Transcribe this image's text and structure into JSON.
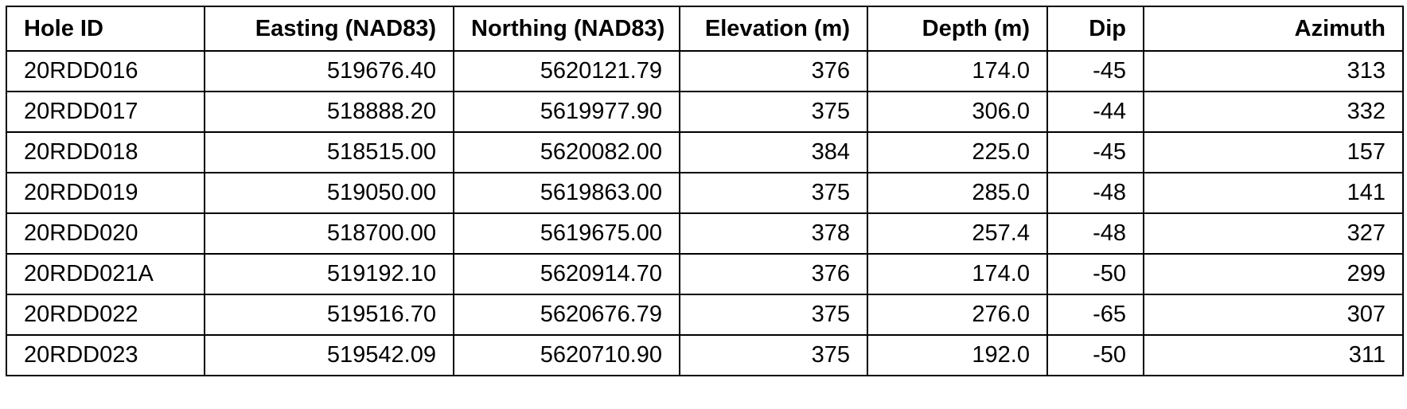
{
  "table": {
    "headers": [
      "Hole ID",
      "Easting (NAD83)",
      "Northing (NAD83)",
      "Elevation (m)",
      "Depth (m)",
      "Dip",
      "Azimuth"
    ],
    "rows": [
      [
        "20RDD016",
        "519676.40",
        "5620121.79",
        "376",
        "174.0",
        "-45",
        "313"
      ],
      [
        "20RDD017",
        "518888.20",
        "5619977.90",
        "375",
        "306.0",
        "-44",
        "332"
      ],
      [
        "20RDD018",
        "518515.00",
        "5620082.00",
        "384",
        "225.0",
        "-45",
        "157"
      ],
      [
        "20RDD019",
        "519050.00",
        "5619863.00",
        "375",
        "285.0",
        "-48",
        "141"
      ],
      [
        "20RDD020",
        "518700.00",
        "5619675.00",
        "378",
        "257.4",
        "-48",
        "327"
      ],
      [
        "20RDD021A",
        "519192.10",
        "5620914.70",
        "376",
        "174.0",
        "-50",
        "299"
      ],
      [
        "20RDD022",
        "519516.70",
        "5620676.79",
        "375",
        "276.0",
        "-65",
        "307"
      ],
      [
        "20RDD023",
        "519542.09",
        "5620710.90",
        "375",
        "192.0",
        "-50",
        "311"
      ]
    ]
  }
}
